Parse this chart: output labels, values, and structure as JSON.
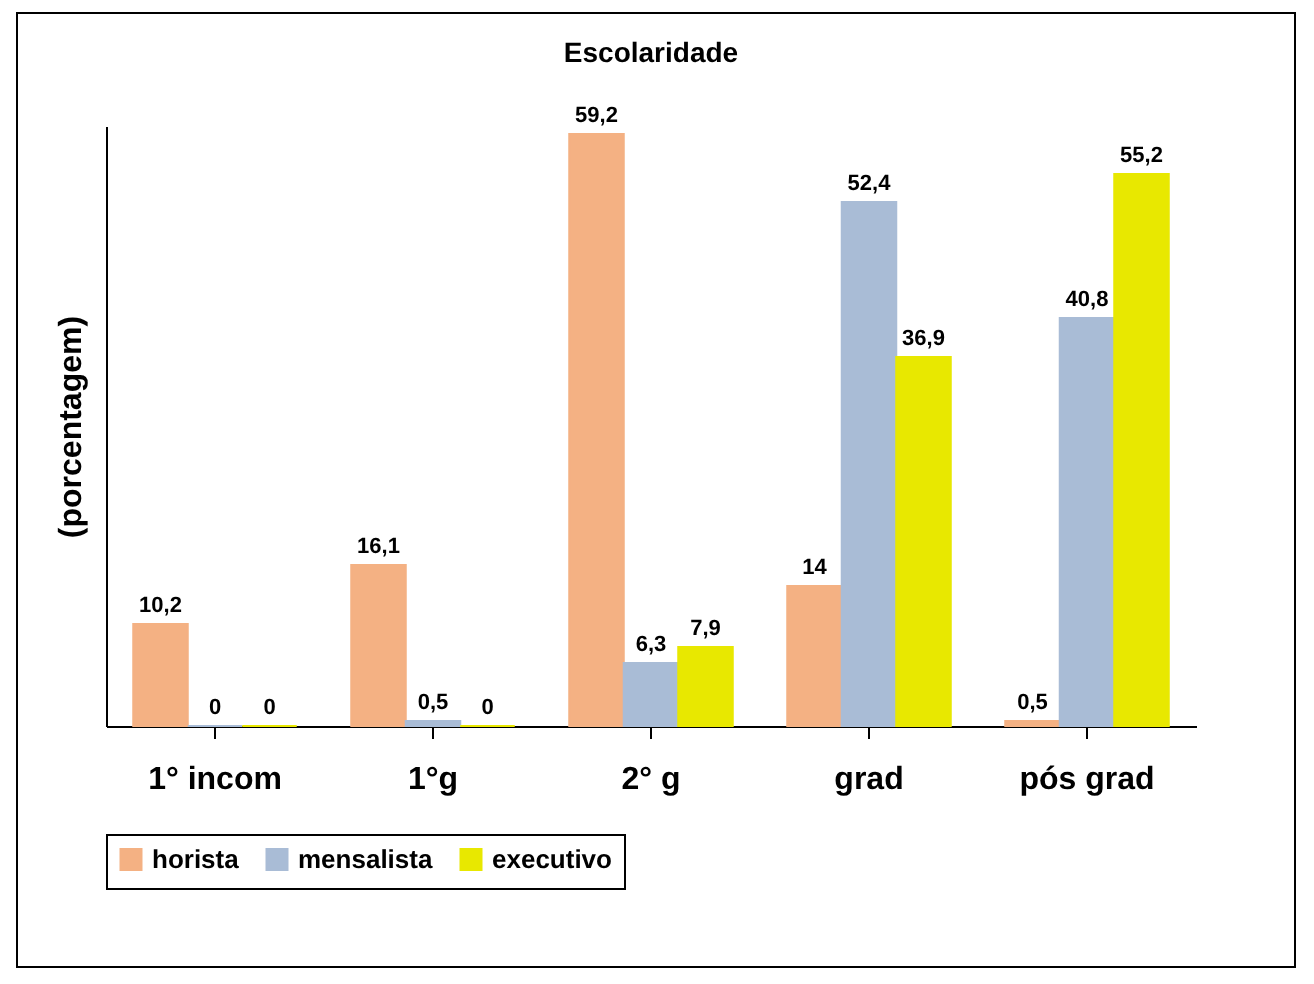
{
  "chart_data": {
    "type": "bar",
    "title": "Escolaridade",
    "ylabel": "(porcentagem)",
    "categories": [
      "1° incom",
      "1°g",
      "2° g",
      "grad",
      "pós grad"
    ],
    "series": [
      {
        "name": "horista",
        "color": "#f4b183",
        "values": [
          10.2,
          16.1,
          59.2,
          14,
          0.5
        ],
        "value_labels": [
          "10,2",
          "16,1",
          "59,2",
          "14",
          "0,5"
        ]
      },
      {
        "name": "mensalista",
        "color": "#a9bcd6",
        "values": [
          0,
          0.5,
          6.3,
          52.4,
          40.8
        ],
        "value_labels": [
          "0",
          "0,5",
          "6,3",
          "52,4",
          "40,8"
        ]
      },
      {
        "name": "executivo",
        "color": "#e8e800",
        "values": [
          0,
          0,
          7.9,
          36.9,
          55.2
        ],
        "value_labels": [
          "0",
          "0",
          "7,9",
          "36,9",
          "55,2"
        ]
      }
    ],
    "legend": "bottom",
    "tick_labels": "x",
    "grid": false
  }
}
